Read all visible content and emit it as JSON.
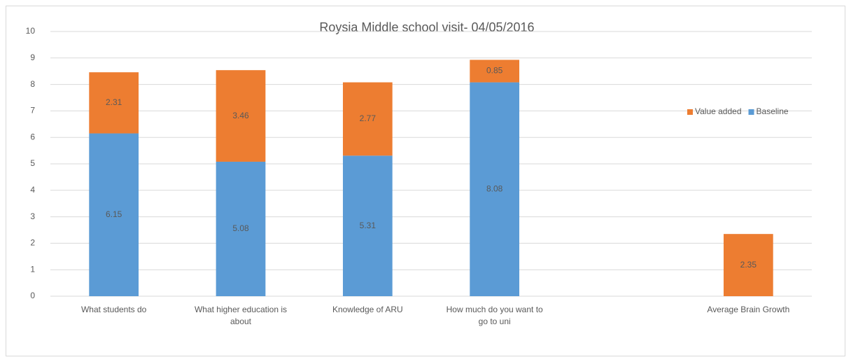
{
  "chart_data": {
    "type": "stacked-bar",
    "title": "Roysia Middle school visit- 04/05/2016",
    "categories": [
      "What students do",
      "What higher education is about",
      "Knowledge of ARU",
      "How much do you want to go to uni",
      null,
      "Average Brain Growth"
    ],
    "series": [
      {
        "name": "Baseline",
        "color": "#5b9bd5",
        "values": [
          6.15,
          5.08,
          5.31,
          8.08,
          null,
          null
        ]
      },
      {
        "name": "Value added",
        "color": "#ed7d31",
        "values": [
          2.31,
          3.46,
          2.77,
          0.85,
          null,
          2.35
        ]
      }
    ],
    "ylim": [
      0,
      10
    ],
    "yticks": [
      0,
      1,
      2,
      3,
      4,
      5,
      6,
      7,
      8,
      9,
      10
    ],
    "grid": true,
    "legend": "right"
  }
}
